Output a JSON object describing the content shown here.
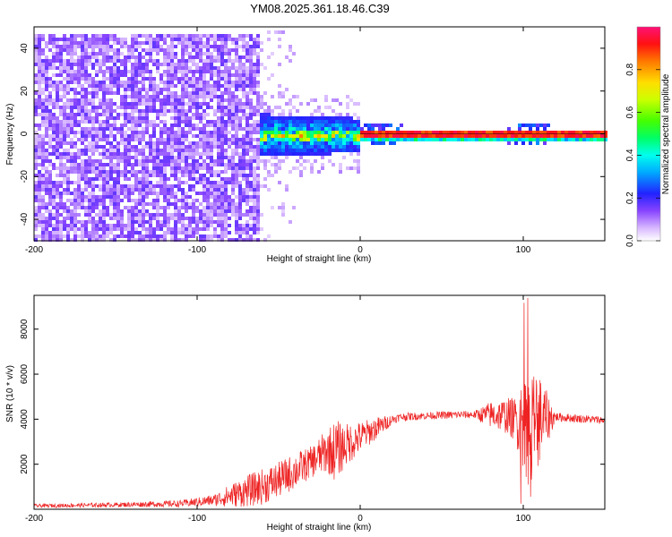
{
  "chart_data": [
    {
      "type": "heatmap",
      "title": "YM08.2025.361.18.46.C39",
      "xlabel": "Height of straight line (km)",
      "ylabel": "Frequency (Hz)",
      "xlim": [
        -200,
        150
      ],
      "ylim": [
        -50,
        50
      ],
      "xticks": [
        -200,
        -100,
        0,
        100
      ],
      "yticks": [
        -40,
        -20,
        0,
        20,
        40
      ],
      "colorbar": {
        "label": "Normalized spectral amplitude",
        "range": [
          0.0,
          1.0
        ],
        "ticks": [
          0.0,
          0.2,
          0.4,
          0.6,
          0.8
        ],
        "tick_labels": [
          "0.0",
          "0.2",
          "0.4",
          "0.6",
          "0.8"
        ]
      },
      "regions": [
        {
          "name": "diffuse noise",
          "x": [
            -200,
            -60
          ],
          "freq_range": [
            -50,
            48
          ],
          "amplitude": 0.08
        },
        {
          "name": "broadband transition",
          "x": [
            -75,
            0
          ],
          "freq_range": [
            -12,
            12
          ],
          "amplitude": 0.3
        },
        {
          "name": "narrow carrier",
          "x": [
            0,
            150
          ],
          "freq_range": [
            -2,
            2
          ],
          "amplitude": 0.95
        }
      ]
    },
    {
      "type": "line",
      "xlabel": "Height of straight line (km)",
      "ylabel": "SNR (10 * v/v)",
      "xlim": [
        -200,
        150
      ],
      "ylim": [
        0,
        9500
      ],
      "xticks": [
        -200,
        -100,
        0,
        100
      ],
      "yticks": [
        2000,
        4000,
        6000,
        8000
      ],
      "line_color": "#ee2222",
      "envelope": {
        "x": [
          -200,
          -150,
          -110,
          -90,
          -80,
          -70,
          -60,
          -50,
          -40,
          -30,
          -20,
          -15,
          -10,
          0,
          10,
          20,
          25,
          40,
          60,
          70,
          80,
          90,
          95,
          100,
          105,
          110,
          120,
          150
        ],
        "baseline": [
          150,
          200,
          250,
          400,
          600,
          800,
          1000,
          1300,
          1700,
          2100,
          2600,
          2600,
          2800,
          3200,
          3600,
          4000,
          4100,
          4150,
          4200,
          4200,
          4200,
          4150,
          4000,
          3800,
          3600,
          4000,
          4100,
          3950
        ],
        "spread": [
          80,
          100,
          150,
          250,
          500,
          700,
          800,
          800,
          800,
          700,
          1000,
          1400,
          1000,
          700,
          500,
          200,
          180,
          170,
          170,
          170,
          600,
          800,
          1000,
          2000,
          3000,
          2000,
          200,
          170
        ]
      }
    }
  ]
}
